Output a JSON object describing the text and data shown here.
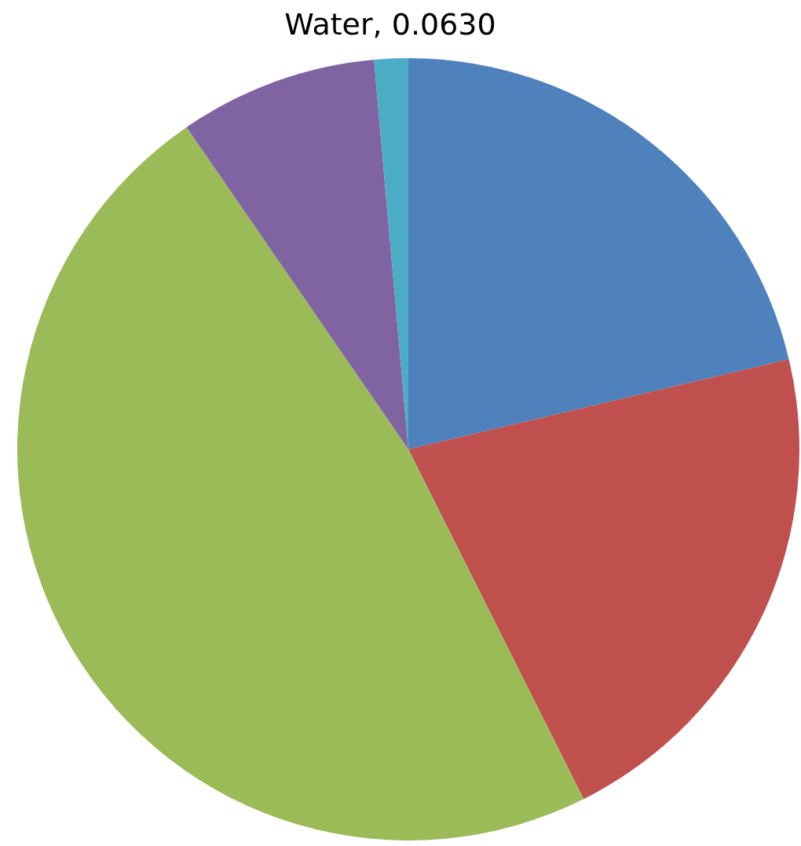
{
  "chart_data": {
    "type": "pie",
    "title": "Water, 0.0630",
    "categories": [
      null,
      null,
      null,
      null,
      null
    ],
    "values": [
      21.3,
      21.3,
      47.8,
      8.2,
      1.4
    ],
    "colors": [
      "#4f81bd",
      "#c0504d",
      "#9bbb59",
      "#8064a2",
      "#4bacc6"
    ]
  }
}
